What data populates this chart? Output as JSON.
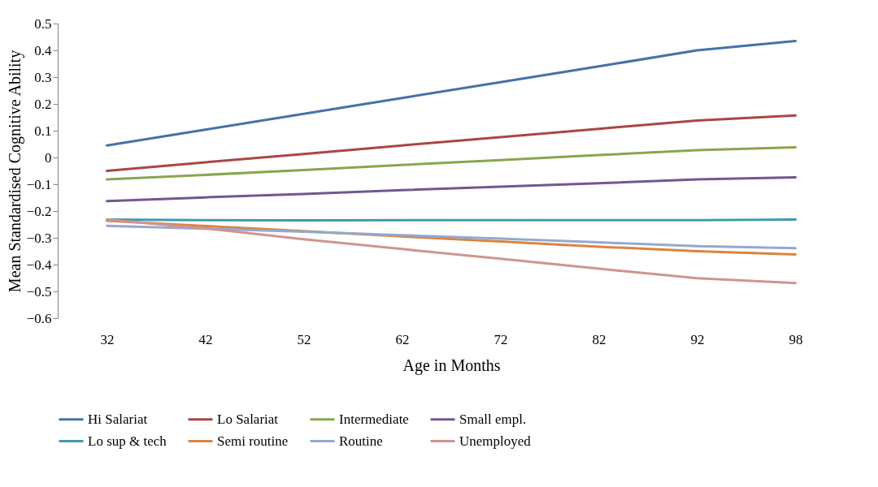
{
  "chart_data": {
    "type": "line",
    "xlabel": "Age in Months",
    "ylabel": "Mean Standardised Cognitive Ability",
    "categories": [
      "32",
      "42",
      "52",
      "62",
      "72",
      "82",
      "92",
      "98"
    ],
    "ylim": [
      -0.6,
      0.5
    ],
    "yticks": [
      -0.6,
      -0.5,
      -0.4,
      -0.3,
      -0.2,
      -0.1,
      0,
      0.1,
      0.2,
      0.3,
      0.4,
      0.5
    ],
    "grid": false,
    "legend": "bottom",
    "marker": "none",
    "line_style": "solid",
    "series": [
      {
        "name": "Hi Salariat",
        "color": "#4572a7",
        "values": [
          0.045,
          0.104,
          0.163,
          0.222,
          0.281,
          0.34,
          0.4,
          0.435
        ]
      },
      {
        "name": "Lo Salariat",
        "color": "#aa4643",
        "values": [
          -0.05,
          -0.018,
          0.013,
          0.045,
          0.076,
          0.107,
          0.138,
          0.157
        ]
      },
      {
        "name": "Intermediate",
        "color": "#89a54e",
        "values": [
          -0.082,
          -0.065,
          -0.047,
          -0.028,
          -0.01,
          0.009,
          0.027,
          0.038
        ]
      },
      {
        "name": "Small empl.",
        "color": "#71588f",
        "values": [
          -0.163,
          -0.149,
          -0.136,
          -0.122,
          -0.109,
          -0.096,
          -0.082,
          -0.074
        ]
      },
      {
        "name": "Lo sup & tech",
        "color": "#4198af",
        "values": [
          -0.232,
          -0.234,
          -0.235,
          -0.234,
          -0.234,
          -0.234,
          -0.234,
          -0.232
        ]
      },
      {
        "name": "Semi routine",
        "color": "#db843d",
        "values": [
          -0.236,
          -0.256,
          -0.275,
          -0.295,
          -0.314,
          -0.333,
          -0.35,
          -0.362
        ]
      },
      {
        "name": "Routine",
        "color": "#93a9cf",
        "values": [
          -0.255,
          -0.266,
          -0.277,
          -0.29,
          -0.303,
          -0.317,
          -0.331,
          -0.339
        ]
      },
      {
        "name": "Unemployed",
        "color": "#d09392",
        "values": [
          -0.232,
          -0.265,
          -0.305,
          -0.342,
          -0.378,
          -0.415,
          -0.451,
          -0.469
        ]
      }
    ]
  }
}
